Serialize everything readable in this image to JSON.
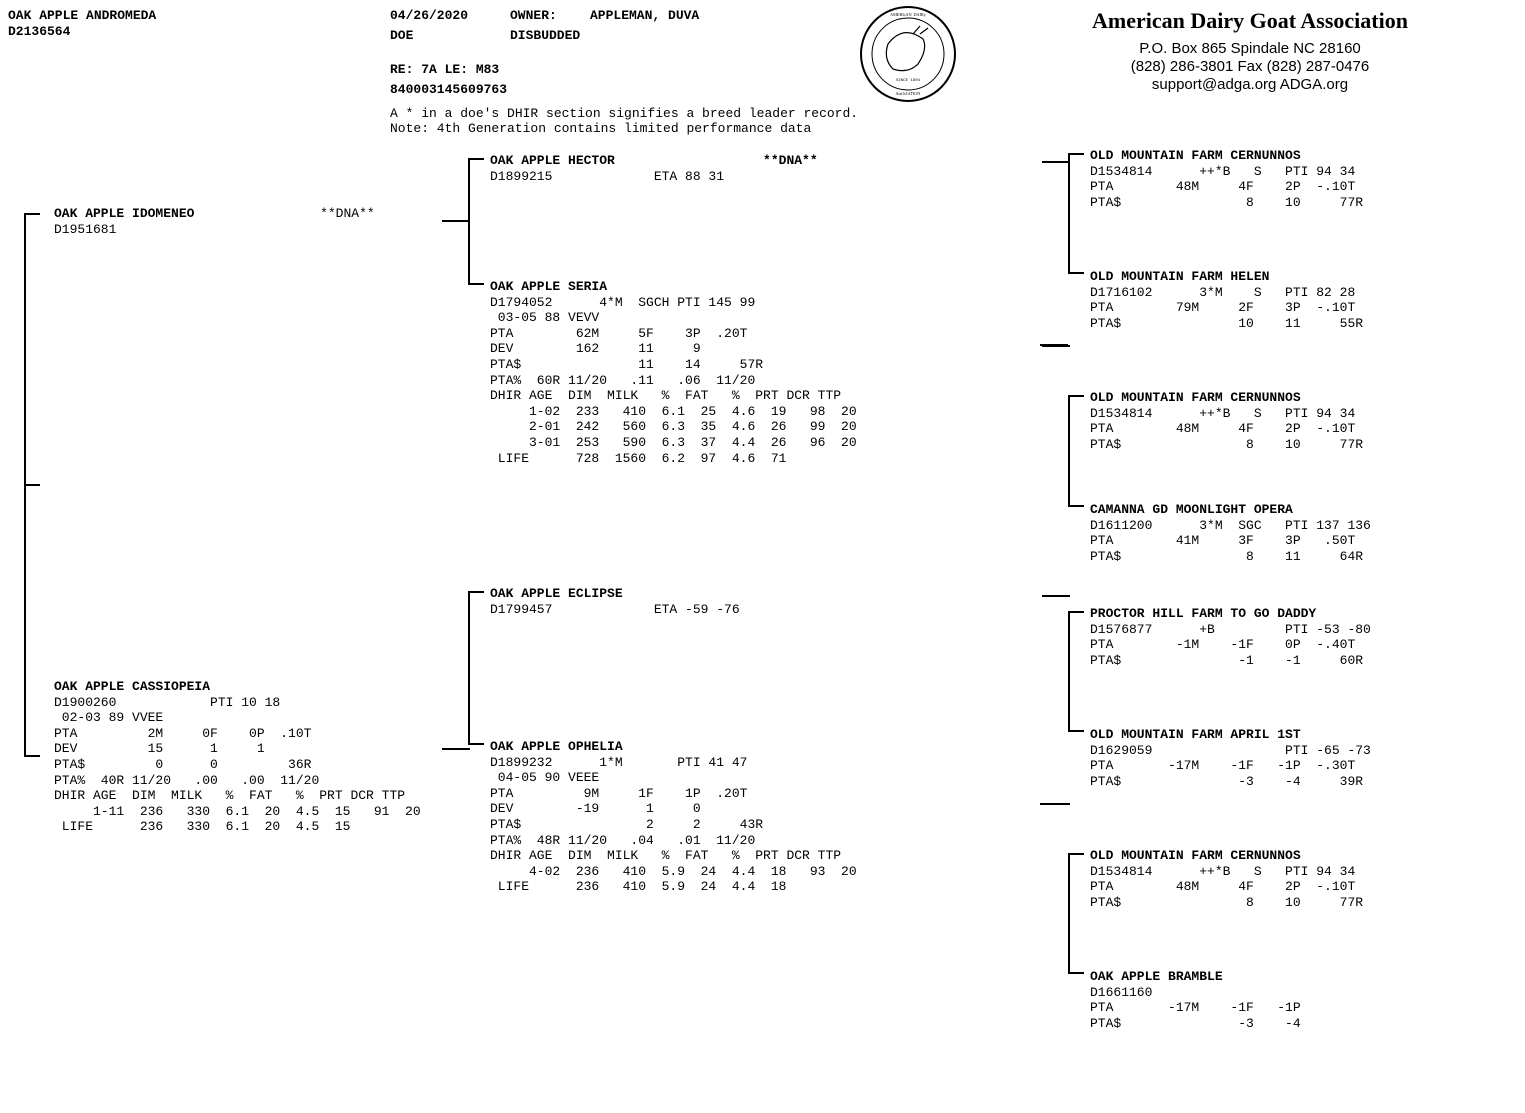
{
  "header": {
    "animal_name": "OAK APPLE ANDROMEDA",
    "animal_id": "D2136564",
    "date": "04/26/2020",
    "sex": "DOE",
    "owner_label": "OWNER:",
    "owner_value": "APPLEMAN, DUVA",
    "horn": "DISBUDDED",
    "re_line": "RE: 7A LE: M83",
    "tag": "840003145609763",
    "note1": "A * in a doe's  DHIR section  signifies a breed leader record.",
    "note2": "Note: 4th Generation contains limited performance data"
  },
  "org": {
    "name": "American Dairy Goat Association",
    "addr": "P.O. Box 865   Spindale NC 28160",
    "phone": "(828) 286-3801   Fax (828) 287-0476",
    "contact": "support@adga.org   ADGA.org"
  },
  "gen2": {
    "sire": {
      "name": "OAK APPLE IDOMENEO",
      "dna": "**DNA**",
      "id": "D1951681"
    },
    "dam": {
      "body": "OAK APPLE CASSIOPEIA\nD1900260            PTI 10 18\n 02-03 89 VVEE\nPTA         2M     0F    0P  .10T\nDEV         15      1     1\nPTA$         0      0         36R\nPTA%  40R 11/20   .00   .00  11/20\nDHIR AGE  DIM  MILK   %  FAT   %  PRT DCR TTP\n     1-11  236   330  6.1  20  4.5  15   91  20\n LIFE      236   330  6.1  20  4.5  15"
    }
  },
  "gen3": {
    "ss": {
      "body": "OAK APPLE HECTOR                   **DNA**\nD1899215             ETA 88 31"
    },
    "sd": {
      "body": "OAK APPLE SERIA\nD1794052      4*M  SGCH PTI 145 99\n 03-05 88 VEVV\nPTA        62M     5F    3P  .20T\nDEV        162     11     9\nPTA$               11    14     57R\nPTA%  60R 11/20   .11   .06  11/20\nDHIR AGE  DIM  MILK   %  FAT   %  PRT DCR TTP\n     1-02  233   410  6.1  25  4.6  19   98  20\n     2-01  242   560  6.3  35  4.6  26   99  20\n     3-01  253   590  6.3  37  4.4  26   96  20\n LIFE      728  1560  6.2  97  4.6  71"
    },
    "ds": {
      "body": "OAK APPLE ECLIPSE\nD1799457             ETA -59 -76"
    },
    "dd": {
      "body": "OAK APPLE OPHELIA\nD1899232      1*M       PTI 41 47\n 04-05 90 VEEE\nPTA         9M     1F    1P  .20T\nDEV        -19      1     0\nPTA$                2     2     43R\nPTA%  48R 11/20   .04   .01  11/20\nDHIR AGE  DIM  MILK   %  FAT   %  PRT DCR TTP\n     4-02  236   410  5.9  24  4.4  18   93  20\n LIFE      236   410  5.9  24  4.4  18"
    }
  },
  "gen4": {
    "a": "OLD MOUNTAIN FARM CERNUNNOS\nD1534814      ++*B   S   PTI 94 34\nPTA        48M     4F    2P  -.10T\nPTA$                8    10     77R",
    "b": "OLD MOUNTAIN FARM HELEN\nD1716102      3*M    S   PTI 82 28\nPTA        79M     2F    3P  -.10T\nPTA$               10    11     55R",
    "c": "OLD MOUNTAIN FARM CERNUNNOS\nD1534814      ++*B   S   PTI 94 34\nPTA        48M     4F    2P  -.10T\nPTA$                8    10     77R",
    "d": "CAMANNA GD MOONLIGHT OPERA\nD1611200      3*M  SGC   PTI 137 136\nPTA        41M     3F    3P   .50T\nPTA$                8    11     64R",
    "e": "PROCTOR HILL FARM TO GO DADDY\nD1576877      +B         PTI -53 -80\nPTA        -1M    -1F    0P  -.40T\nPTA$               -1    -1     60R",
    "f": "OLD MOUNTAIN FARM APRIL 1ST\nD1629059                 PTI -65 -73\nPTA       -17M    -1F   -1P  -.30T\nPTA$               -3    -4     39R",
    "g": "OLD MOUNTAIN FARM CERNUNNOS\nD1534814      ++*B   S   PTI 94 34\nPTA        48M     4F    2P  -.10T\nPTA$                8    10     77R",
    "h": "OAK APPLE BRAMBLE\nD1661160\nPTA       -17M    -1F   -1P\nPTA$               -3    -4"
  }
}
